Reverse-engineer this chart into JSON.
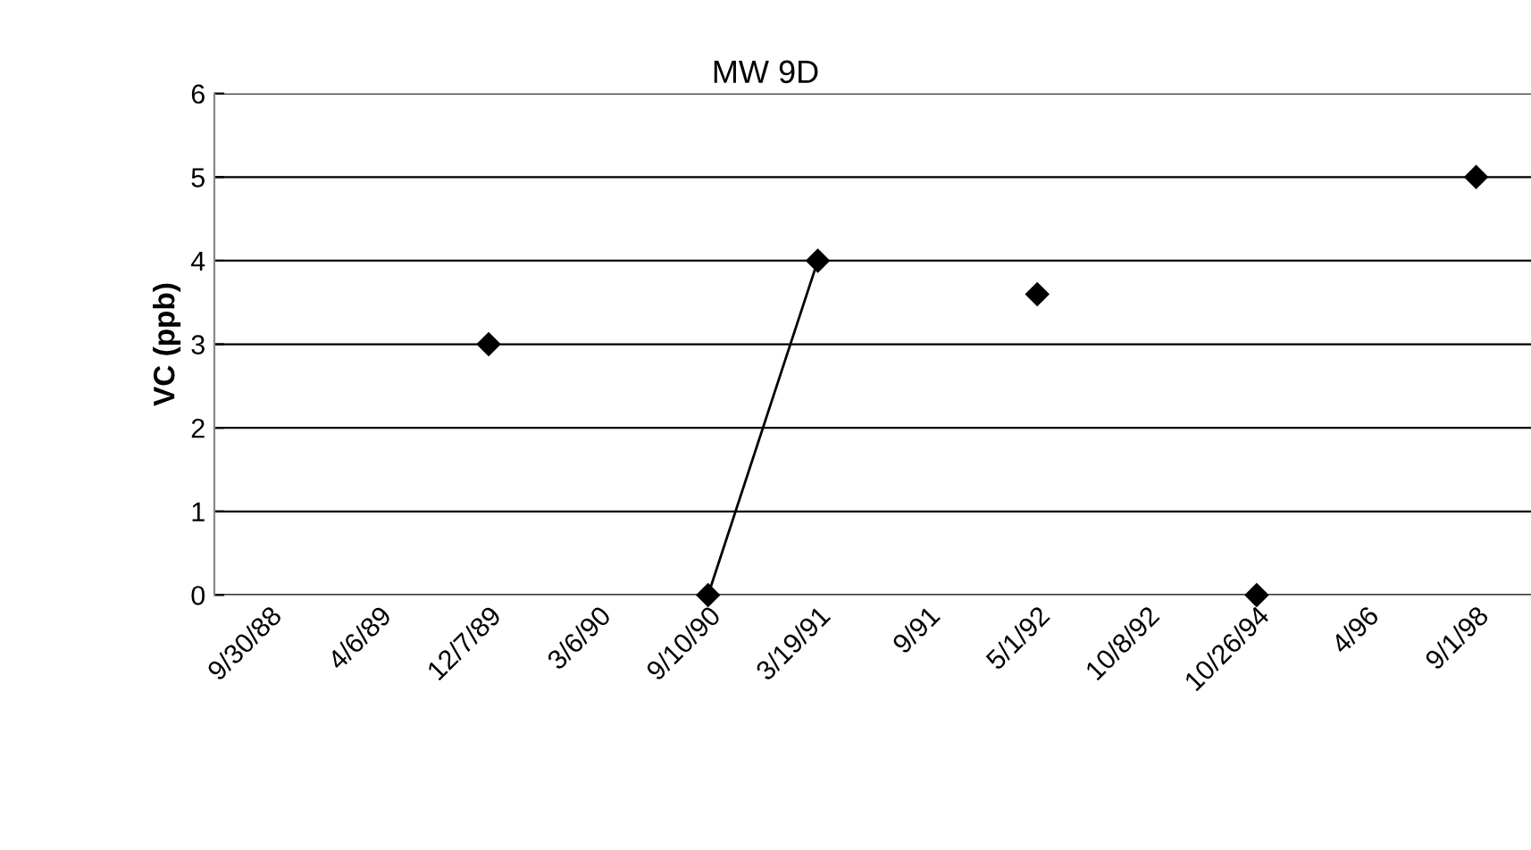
{
  "chart_data": {
    "type": "line",
    "title": "MW 9D",
    "ylabel": "VC (ppb)",
    "categories": [
      "9/30/88",
      "4/6/89",
      "12/7/89",
      "3/6/90",
      "9/10/90",
      "3/19/91",
      "9/91",
      "5/1/92",
      "10/8/92",
      "10/26/94",
      "4/96",
      "9/1/98"
    ],
    "series": [
      {
        "color": "#000000",
        "values": [
          null,
          null,
          3,
          null,
          0,
          4,
          null,
          3.6,
          null,
          0,
          null,
          5
        ]
      }
    ],
    "ylim": [
      0,
      6
    ],
    "yticks": [
      0,
      1,
      2,
      3,
      4,
      5,
      6
    ],
    "grid": "y",
    "marker": "diamond",
    "line_style": "solid",
    "legend": false
  }
}
